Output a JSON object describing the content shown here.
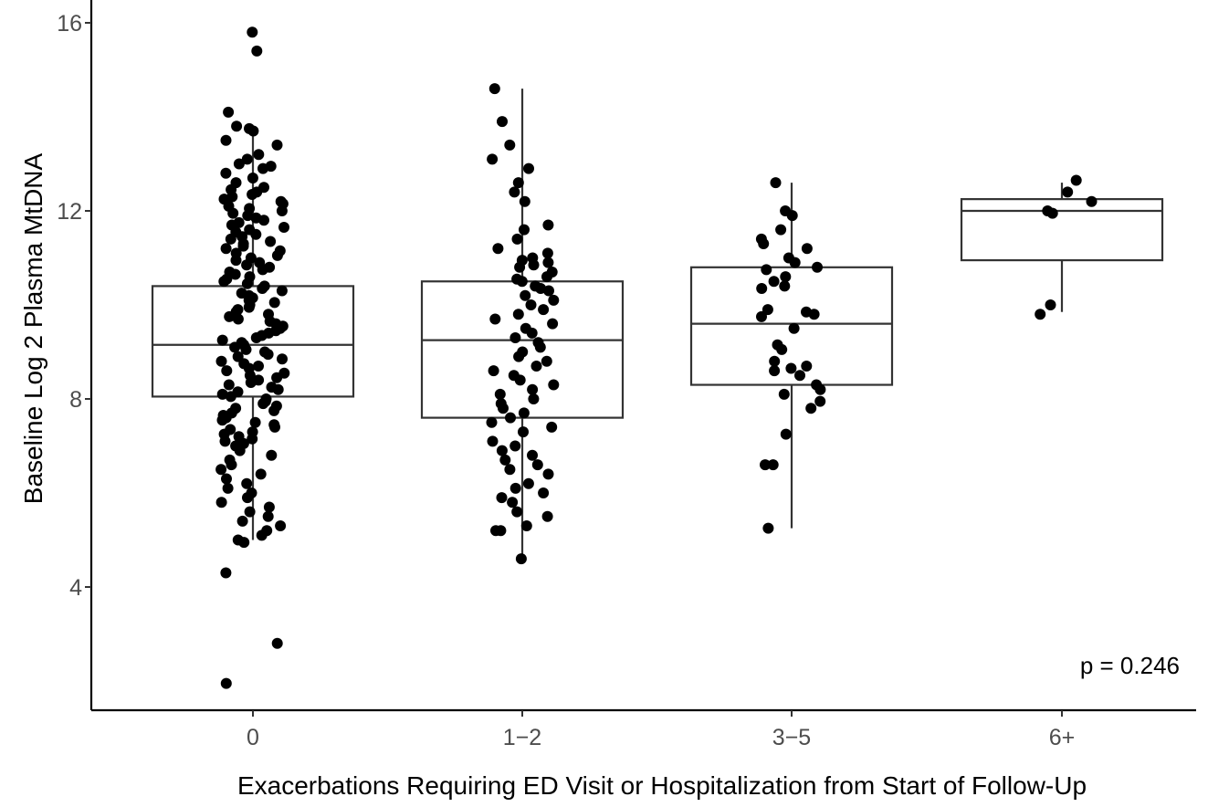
{
  "chart_data": {
    "type": "box",
    "xlabel": "Exacerbations Requiring ED Visit or Hospitalization from Start of Follow-Up",
    "ylabel": "Baseline Log 2 Plasma MtDNA",
    "categories": [
      "0",
      "1−2",
      "3−5",
      "6+"
    ],
    "ylim": [
      1.4,
      16.5
    ],
    "yticks": [
      4,
      8,
      12,
      16
    ],
    "grid": false,
    "annotation": "p = 0.246",
    "boxes": [
      {
        "category": "0",
        "whisker_low": 5.0,
        "q1": 8.05,
        "median": 9.15,
        "q3": 10.4,
        "whisker_high": 13.8
      },
      {
        "category": "1−2",
        "whisker_low": 4.6,
        "q1": 7.6,
        "median": 9.25,
        "q3": 10.5,
        "whisker_high": 14.6
      },
      {
        "category": "3−5",
        "whisker_low": 5.25,
        "q1": 8.3,
        "median": 9.6,
        "q3": 10.8,
        "whisker_high": 12.6
      },
      {
        "category": "6+",
        "whisker_low": 9.85,
        "q1": 10.95,
        "median": 12.0,
        "q3": 12.25,
        "whisker_high": 12.6
      }
    ],
    "points": [
      {
        "category": "0",
        "y": [
          15.8,
          15.4,
          14.1,
          13.8,
          13.75,
          13.7,
          13.5,
          13.4,
          13.2,
          13.1,
          13.0,
          12.95,
          12.9,
          12.8,
          12.7,
          12.6,
          12.5,
          12.45,
          12.4,
          12.35,
          12.3,
          12.25,
          12.2,
          12.15,
          12.1,
          12.05,
          12.0,
          11.95,
          11.9,
          11.85,
          11.8,
          11.75,
          11.7,
          11.65,
          11.6,
          11.55,
          11.5,
          11.45,
          11.4,
          11.35,
          11.3,
          11.25,
          11.2,
          11.15,
          11.1,
          11.05,
          11.0,
          10.95,
          10.9,
          10.85,
          10.8,
          10.75,
          10.7,
          10.65,
          10.6,
          10.55,
          10.5,
          10.45,
          10.4,
          10.35,
          10.3,
          10.25,
          10.2,
          10.15,
          10.1,
          10.05,
          10.0,
          9.95,
          9.9,
          9.85,
          9.8,
          9.75,
          9.7,
          9.65,
          9.6,
          9.55,
          9.5,
          9.45,
          9.4,
          9.35,
          9.3,
          9.25,
          9.2,
          9.15,
          9.1,
          9.05,
          9.0,
          8.95,
          8.9,
          8.85,
          8.8,
          8.75,
          8.7,
          8.65,
          8.6,
          8.55,
          8.5,
          8.45,
          8.4,
          8.35,
          8.3,
          8.25,
          8.2,
          8.15,
          8.1,
          8.05,
          8.0,
          7.95,
          7.9,
          7.85,
          7.8,
          7.75,
          7.7,
          7.65,
          7.6,
          7.55,
          7.5,
          7.45,
          7.4,
          7.35,
          7.3,
          7.25,
          7.2,
          7.15,
          7.1,
          7.05,
          7.0,
          6.9,
          6.8,
          6.7,
          6.6,
          6.5,
          6.4,
          6.3,
          6.2,
          6.1,
          6.0,
          5.9,
          5.8,
          5.7,
          5.6,
          5.5,
          5.4,
          5.3,
          5.2,
          5.1,
          5.0,
          4.95,
          4.3,
          2.8,
          1.95
        ]
      },
      {
        "category": "1−2",
        "y": [
          14.6,
          13.9,
          13.4,
          13.1,
          12.9,
          12.6,
          12.4,
          12.2,
          11.7,
          11.6,
          11.4,
          11.2,
          11.1,
          11.0,
          10.95,
          10.9,
          10.85,
          10.8,
          10.7,
          10.6,
          10.55,
          10.5,
          10.4,
          10.35,
          10.3,
          10.2,
          10.1,
          10.0,
          9.9,
          9.8,
          9.7,
          9.6,
          9.5,
          9.4,
          9.3,
          9.2,
          9.1,
          9.0,
          8.9,
          8.8,
          8.7,
          8.6,
          8.5,
          8.4,
          8.3,
          8.2,
          8.1,
          8.0,
          7.9,
          7.8,
          7.7,
          7.6,
          7.5,
          7.4,
          7.3,
          7.1,
          7.0,
          6.9,
          6.8,
          6.7,
          6.6,
          6.5,
          6.4,
          6.2,
          6.1,
          6.0,
          5.9,
          5.8,
          5.6,
          5.5,
          5.3,
          5.2,
          5.2,
          4.6
        ]
      },
      {
        "category": "3−5",
        "y": [
          12.6,
          12.0,
          11.9,
          11.6,
          11.4,
          11.3,
          11.2,
          11.0,
          10.9,
          10.8,
          10.75,
          10.6,
          10.5,
          10.4,
          10.35,
          9.9,
          9.85,
          9.8,
          9.75,
          9.5,
          9.15,
          9.05,
          8.8,
          8.7,
          8.65,
          8.6,
          8.5,
          8.3,
          8.2,
          8.1,
          7.95,
          7.8,
          7.25,
          6.6,
          6.6,
          5.25
        ]
      },
      {
        "category": "6+",
        "y": [
          12.65,
          12.4,
          12.2,
          12.0,
          11.95,
          10.0,
          9.8
        ]
      }
    ]
  }
}
